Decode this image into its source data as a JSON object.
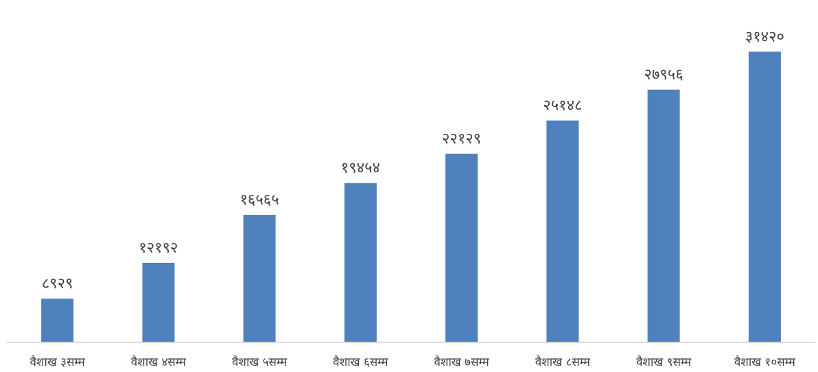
{
  "chart_data": {
    "type": "bar",
    "categories": [
      "वैशाख ३सम्म",
      "वैशाख ४सम्म",
      "वैशाख ५सम्म",
      "वैशाख ६सम्म",
      "वैशाख ७सम्म",
      "वैशाख ८सम्म",
      "वैशाख ९सम्म",
      "वैशाख १०सम्म"
    ],
    "values": [
      8929,
      12192,
      16565,
      19454,
      22129,
      25148,
      27956,
      31420
    ],
    "value_labels": [
      "८९२९",
      "१२१९२",
      "१६५६५",
      "१९४५४",
      "२२१२९",
      "२५१४८",
      "२७९५६",
      "३१४२०"
    ],
    "title": "",
    "xlabel": "",
    "ylabel": "",
    "ylim": [
      5000,
      32500
    ],
    "grid": false,
    "legend": "none",
    "colors": {
      "bar": "#4F81BD",
      "axis": "#BFBFBF",
      "text": "#404040"
    }
  }
}
